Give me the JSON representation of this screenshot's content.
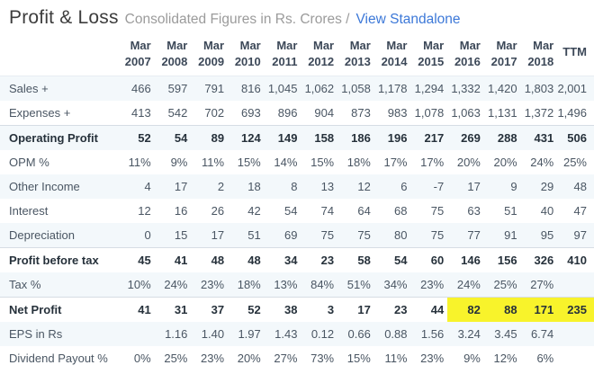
{
  "header": {
    "title": "Profit & Loss",
    "subtitle": "Consolidated Figures in Rs. Crores /",
    "link_label": "View Standalone"
  },
  "colors": {
    "highlight": "#f8f32b",
    "stripe": "#f3f8fb",
    "link_blue": "#3c78d8"
  },
  "table": {
    "columns": [
      {
        "line1": "Mar",
        "line2": "2007"
      },
      {
        "line1": "Mar",
        "line2": "2008"
      },
      {
        "line1": "Mar",
        "line2": "2009"
      },
      {
        "line1": "Mar",
        "line2": "2010"
      },
      {
        "line1": "Mar",
        "line2": "2011"
      },
      {
        "line1": "Mar",
        "line2": "2012"
      },
      {
        "line1": "Mar",
        "line2": "2013"
      },
      {
        "line1": "Mar",
        "line2": "2014"
      },
      {
        "line1": "Mar",
        "line2": "2015"
      },
      {
        "line1": "Mar",
        "line2": "2016"
      },
      {
        "line1": "Mar",
        "line2": "2017"
      },
      {
        "line1": "Mar",
        "line2": "2018"
      },
      {
        "line1": "",
        "line2": "TTM"
      }
    ],
    "rows": [
      {
        "label": "Sales +",
        "expandable": true,
        "values": [
          "466",
          "597",
          "791",
          "816",
          "1,045",
          "1,062",
          "1,058",
          "1,178",
          "1,294",
          "1,332",
          "1,420",
          "1,803",
          "2,001"
        ]
      },
      {
        "label": "Expenses +",
        "expandable": true,
        "values": [
          "413",
          "542",
          "702",
          "693",
          "896",
          "904",
          "873",
          "983",
          "1,078",
          "1,063",
          "1,131",
          "1,372",
          "1,496"
        ]
      },
      {
        "label": "Operating Profit",
        "bold": true,
        "top_border": true,
        "values": [
          "52",
          "54",
          "89",
          "124",
          "149",
          "158",
          "186",
          "196",
          "217",
          "269",
          "288",
          "431",
          "506"
        ]
      },
      {
        "label": "OPM %",
        "values": [
          "11%",
          "9%",
          "11%",
          "15%",
          "14%",
          "15%",
          "18%",
          "17%",
          "17%",
          "20%",
          "20%",
          "24%",
          "25%"
        ]
      },
      {
        "label": "Other Income",
        "values": [
          "4",
          "17",
          "2",
          "18",
          "8",
          "13",
          "12",
          "6",
          "-7",
          "17",
          "9",
          "29",
          "48"
        ]
      },
      {
        "label": "Interest",
        "values": [
          "12",
          "16",
          "26",
          "42",
          "54",
          "74",
          "64",
          "68",
          "75",
          "63",
          "51",
          "40",
          "47"
        ]
      },
      {
        "label": "Depreciation",
        "values": [
          "0",
          "15",
          "17",
          "51",
          "69",
          "75",
          "75",
          "80",
          "75",
          "77",
          "91",
          "95",
          "97"
        ]
      },
      {
        "label": "Profit before tax",
        "bold": true,
        "top_border": true,
        "values": [
          "45",
          "41",
          "48",
          "48",
          "34",
          "23",
          "58",
          "54",
          "60",
          "146",
          "156",
          "326",
          "410"
        ]
      },
      {
        "label": "Tax %",
        "values": [
          "10%",
          "24%",
          "23%",
          "18%",
          "13%",
          "84%",
          "51%",
          "34%",
          "23%",
          "24%",
          "25%",
          "27%",
          ""
        ]
      },
      {
        "label": "Net Profit",
        "bold": true,
        "top_border": true,
        "highlight_cols": [
          9,
          10,
          11,
          12
        ],
        "values": [
          "41",
          "31",
          "37",
          "52",
          "38",
          "3",
          "17",
          "23",
          "44",
          "82",
          "88",
          "171",
          "235"
        ]
      },
      {
        "label": "EPS in Rs",
        "values": [
          "",
          "1.16",
          "1.40",
          "1.97",
          "1.43",
          "0.12",
          "0.66",
          "0.88",
          "1.56",
          "3.24",
          "3.45",
          "6.74",
          ""
        ]
      },
      {
        "label": "Dividend Payout %",
        "values": [
          "0%",
          "25%",
          "23%",
          "20%",
          "27%",
          "73%",
          "15%",
          "11%",
          "23%",
          "9%",
          "12%",
          "6%",
          ""
        ]
      }
    ]
  }
}
